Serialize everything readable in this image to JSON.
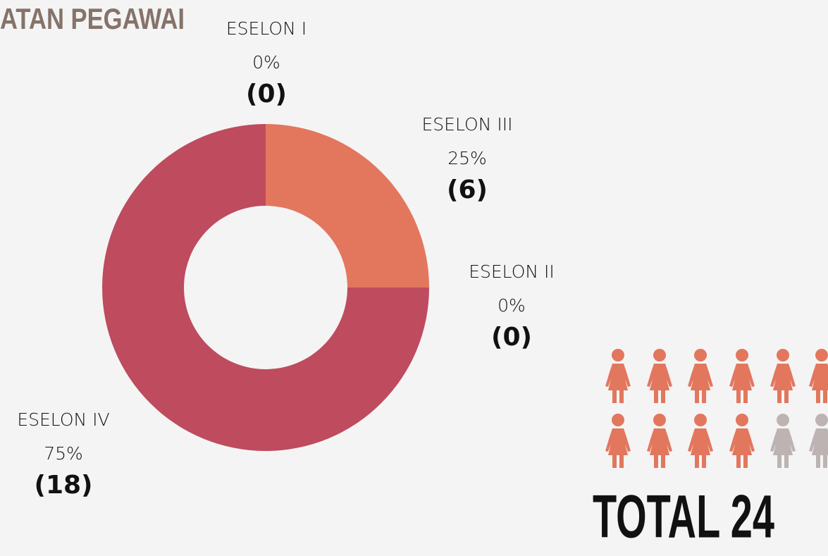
{
  "chart_data": {
    "type": "pie",
    "donut": true,
    "title": "ATAN PEGAWAI",
    "categories": [
      "ESELON I",
      "ESELON III",
      "ESELON II",
      "ESELON IV"
    ],
    "values": [
      0,
      6,
      0,
      18
    ],
    "value_labels": [
      "(0)",
      "(6)",
      "(0)",
      "(18)"
    ],
    "percent_labels": [
      "0%",
      "25%",
      "0%",
      "75%"
    ],
    "colors": [
      "#e9a07a",
      "#e2775e",
      "#d35f5f",
      "#be4b5e"
    ],
    "total_label": "TOTAL 24"
  }
}
